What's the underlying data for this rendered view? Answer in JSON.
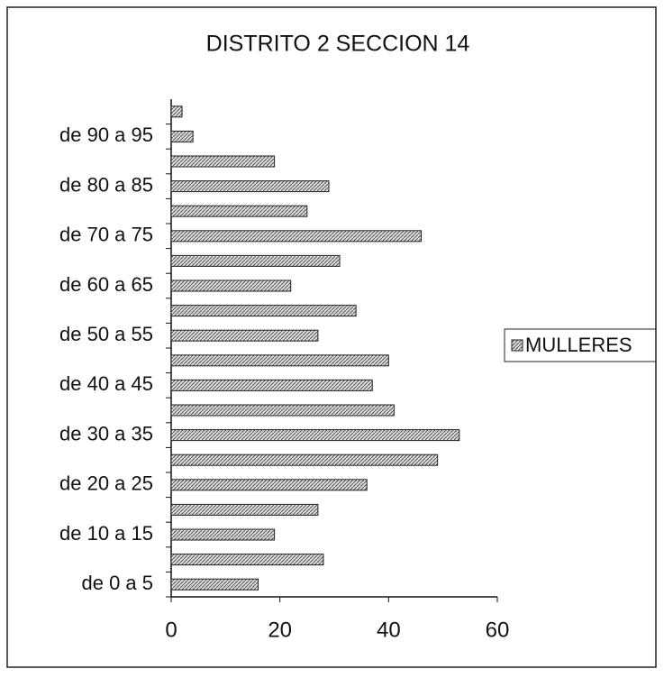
{
  "chart_data": {
    "type": "bar",
    "orientation": "horizontal",
    "title": "DISTRITO 2 SECCION 14",
    "categories": [
      "de 0 a 5",
      null,
      "de 10 a 15",
      null,
      "de 20 a 25",
      null,
      "de 30 a 35",
      null,
      "de 40 a 45",
      null,
      "de 50 a 55",
      null,
      "de 60 a 65",
      null,
      "de 70 a 75",
      null,
      "de 80 a 85",
      null,
      "de 90 a 95",
      null
    ],
    "series": [
      {
        "name": "MULLERES",
        "color": "#9a9a9a",
        "values": [
          16,
          28,
          19,
          27,
          36,
          49,
          53,
          41,
          37,
          40,
          27,
          34,
          22,
          31,
          46,
          25,
          29,
          19,
          4,
          2
        ]
      }
    ],
    "xlim": [
      0,
      60
    ],
    "xticks": [
      0,
      20,
      40,
      60
    ],
    "legend": "right"
  }
}
